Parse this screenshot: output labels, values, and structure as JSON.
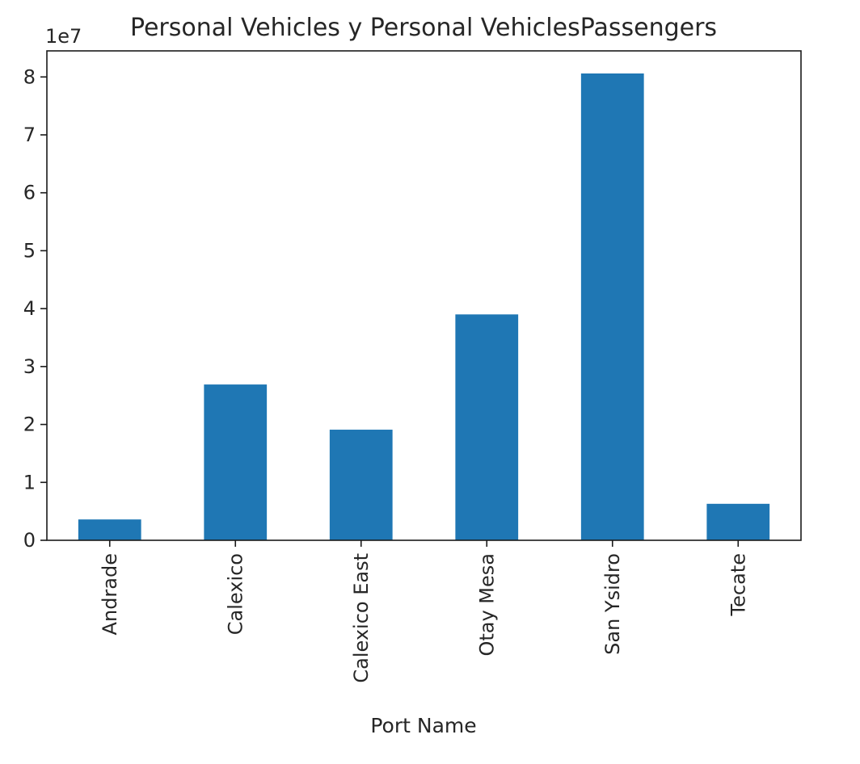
{
  "chart_data": {
    "type": "bar",
    "title": "Personal Vehicles y Personal VehiclesPassengers",
    "xlabel": "Port Name",
    "ylabel": "",
    "y_offset_label": "1e7",
    "y_scale": 10000000,
    "categories": [
      "Andrade",
      "Calexico",
      "Calexico East",
      "Otay Mesa",
      "San Ysidro",
      "Tecate"
    ],
    "values": [
      3600000,
      26900000,
      19100000,
      39000000,
      80600000,
      6300000
    ],
    "ylim": [
      0,
      84500000
    ],
    "yticks": [
      0,
      1,
      2,
      3,
      4,
      5,
      6,
      7,
      8
    ],
    "bar_color": "#1f77b4",
    "grid": false,
    "legend": "none"
  }
}
